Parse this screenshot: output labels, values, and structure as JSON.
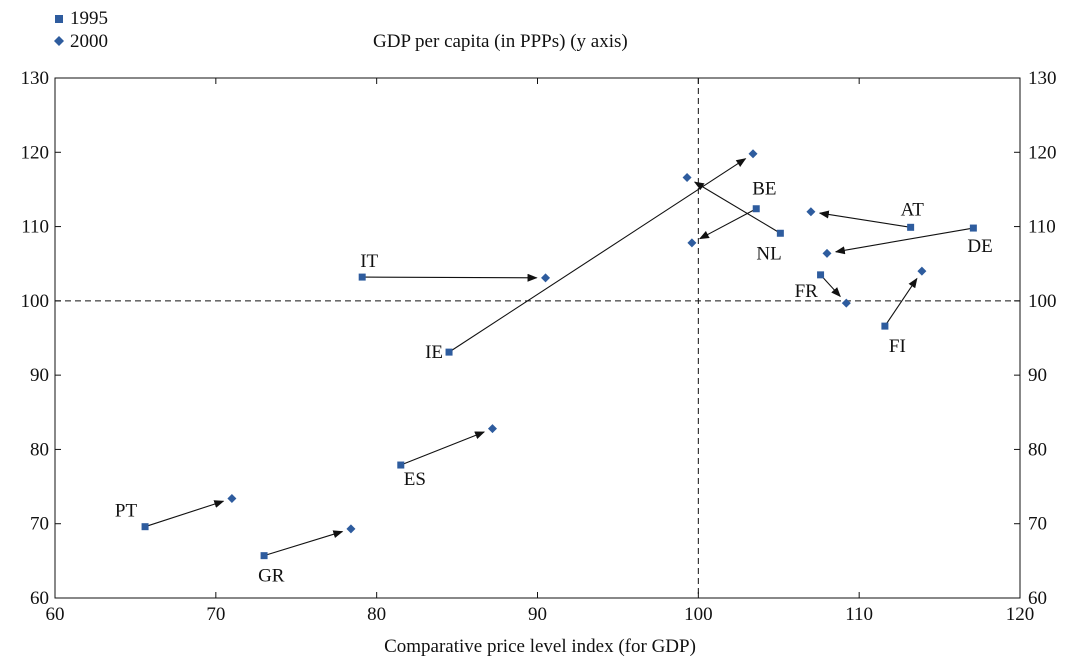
{
  "chart_data": {
    "type": "scatter",
    "title": "GDP per capita (in PPPs) (y axis)",
    "xlabel": "Comparative price level index (for GDP)",
    "xlim": [
      60,
      120
    ],
    "ylim": [
      60,
      130
    ],
    "xticks": [
      60,
      70,
      80,
      90,
      100,
      110,
      120
    ],
    "yticks": [
      60,
      70,
      80,
      90,
      100,
      110,
      120,
      130
    ],
    "reference_lines": {
      "x": 100,
      "y": 100,
      "style": "dashed"
    },
    "legend": {
      "placement": "top-left",
      "entries": [
        {
          "name": "1995",
          "marker": "square"
        },
        {
          "name": "2000",
          "marker": "diamond"
        }
      ]
    },
    "marker_color": "#2e5c9e",
    "series": [
      {
        "name": "1995",
        "points": [
          {
            "label": "PT",
            "x": 65.6,
            "y": 69.6
          },
          {
            "label": "GR",
            "x": 73.0,
            "y": 65.7
          },
          {
            "label": "ES",
            "x": 81.5,
            "y": 77.9
          },
          {
            "label": "IE",
            "x": 84.5,
            "y": 93.1
          },
          {
            "label": "IT",
            "x": 79.1,
            "y": 103.2
          },
          {
            "label": "BE",
            "x": 103.6,
            "y": 112.4
          },
          {
            "label": "NL",
            "x": 105.1,
            "y": 109.1
          },
          {
            "label": "AT",
            "x": 113.2,
            "y": 109.9
          },
          {
            "label": "DE",
            "x": 117.1,
            "y": 109.8
          },
          {
            "label": "FR",
            "x": 107.6,
            "y": 103.5
          },
          {
            "label": "FI",
            "x": 111.6,
            "y": 96.6
          }
        ]
      },
      {
        "name": "2000",
        "points": [
          {
            "label": "PT",
            "x": 71.0,
            "y": 73.4
          },
          {
            "label": "GR",
            "x": 78.4,
            "y": 69.3
          },
          {
            "label": "ES",
            "x": 87.2,
            "y": 82.8
          },
          {
            "label": "IE",
            "x": 103.4,
            "y": 119.8
          },
          {
            "label": "IT",
            "x": 90.5,
            "y": 103.1
          },
          {
            "label": "BE",
            "x": 99.6,
            "y": 107.8
          },
          {
            "label": "NL",
            "x": 99.3,
            "y": 116.6
          },
          {
            "label": "AT",
            "x": 107.0,
            "y": 112.0
          },
          {
            "label": "DE",
            "x": 108.0,
            "y": 106.4
          },
          {
            "label": "FR",
            "x": 109.2,
            "y": 99.7
          },
          {
            "label": "FI",
            "x": 113.9,
            "y": 104.0
          }
        ]
      }
    ],
    "label_anchor": {
      "PT": "1995",
      "GR": "1995",
      "ES": "1995",
      "IE": "1995",
      "IT": "1995",
      "BE": "1995",
      "NL": "1995",
      "AT": "1995",
      "DE": "1995",
      "FR": "1995",
      "FI": "1995"
    }
  }
}
